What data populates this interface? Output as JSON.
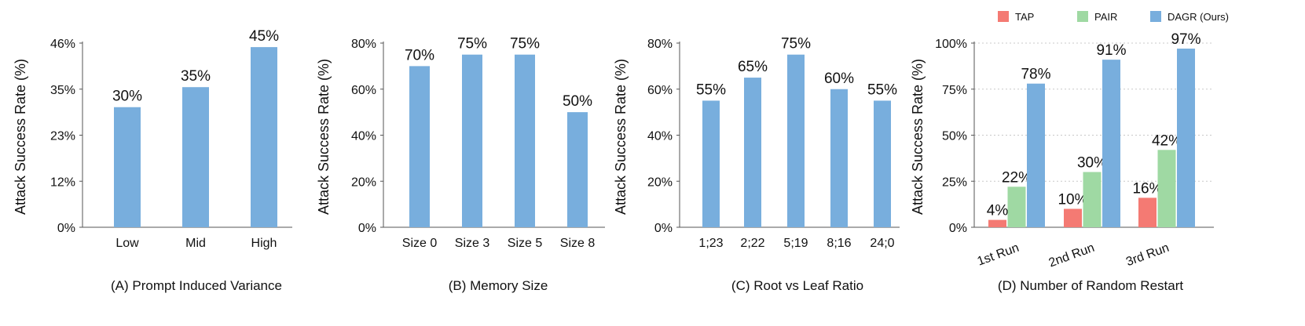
{
  "colors": {
    "TAP": "#f47a73",
    "PAIR": "#9fd9a3",
    "DAGR (Ours)": "#78aedd",
    "single": "#78aedd",
    "axis": "#555555",
    "grid": "#999999"
  },
  "chart_data": [
    {
      "id": "A",
      "type": "bar",
      "title": "(A) Prompt Induced Variance",
      "ylabel": "Attack Success Rate (%)",
      "xlabel": "",
      "categories": [
        "Low",
        "Mid",
        "High"
      ],
      "values": [
        30,
        35,
        45
      ],
      "data_labels": [
        "30%",
        "35%",
        "45%"
      ],
      "ylim": [
        0,
        46
      ],
      "yticks": [
        0,
        11.5,
        23,
        34.5,
        46
      ],
      "ytick_labels": [
        "0%",
        "12%",
        "23%",
        "35%",
        "46%"
      ],
      "grid": false,
      "xtick_rotation": 0
    },
    {
      "id": "B",
      "type": "bar",
      "title": "(B) Memory Size",
      "ylabel": "Attack Success Rate (%)",
      "xlabel": "",
      "categories": [
        "Size 0",
        "Size 3",
        "Size 5",
        "Size 8"
      ],
      "values": [
        70,
        75,
        75,
        50
      ],
      "data_labels": [
        "70%",
        "75%",
        "75%",
        "50%"
      ],
      "ylim": [
        0,
        80
      ],
      "yticks": [
        0,
        20,
        40,
        60,
        80
      ],
      "ytick_labels": [
        "0%",
        "20%",
        "40%",
        "60%",
        "80%"
      ],
      "grid": false,
      "xtick_rotation": 0
    },
    {
      "id": "C",
      "type": "bar",
      "title": "(C) Root vs Leaf Ratio",
      "ylabel": "Attack Success Rate (%)",
      "xlabel": "",
      "categories": [
        "1;23",
        "2;22",
        "5;19",
        "8;16",
        "24;0"
      ],
      "values": [
        55,
        65,
        75,
        60,
        55
      ],
      "data_labels": [
        "55%",
        "65%",
        "75%",
        "60%",
        "55%"
      ],
      "ylim": [
        0,
        80
      ],
      "yticks": [
        0,
        20,
        40,
        60,
        80
      ],
      "ytick_labels": [
        "0%",
        "20%",
        "40%",
        "60%",
        "80%"
      ],
      "grid": false,
      "xtick_rotation": 0
    },
    {
      "id": "D",
      "type": "bar",
      "title": "(D) Number of Random Restart",
      "ylabel": "Attack Success Rate (%)",
      "xlabel": "",
      "categories": [
        "1st Run",
        "2nd Run",
        "3rd Run"
      ],
      "series": [
        {
          "name": "TAP",
          "values": [
            4,
            10,
            16
          ],
          "data_labels": [
            "4%",
            "10%",
            "16%"
          ]
        },
        {
          "name": "PAIR",
          "values": [
            22,
            30,
            42
          ],
          "data_labels": [
            "22%",
            "30%",
            "42%"
          ]
        },
        {
          "name": "DAGR (Ours)",
          "values": [
            78,
            91,
            97
          ],
          "data_labels": [
            "78%",
            "91%",
            "97%"
          ]
        }
      ],
      "ylim": [
        0,
        100
      ],
      "yticks": [
        0,
        25,
        50,
        75,
        100
      ],
      "ytick_labels": [
        "0%",
        "25%",
        "50%",
        "75%",
        "100%"
      ],
      "grid": true,
      "legend": "top",
      "xtick_rotation": -20
    }
  ]
}
